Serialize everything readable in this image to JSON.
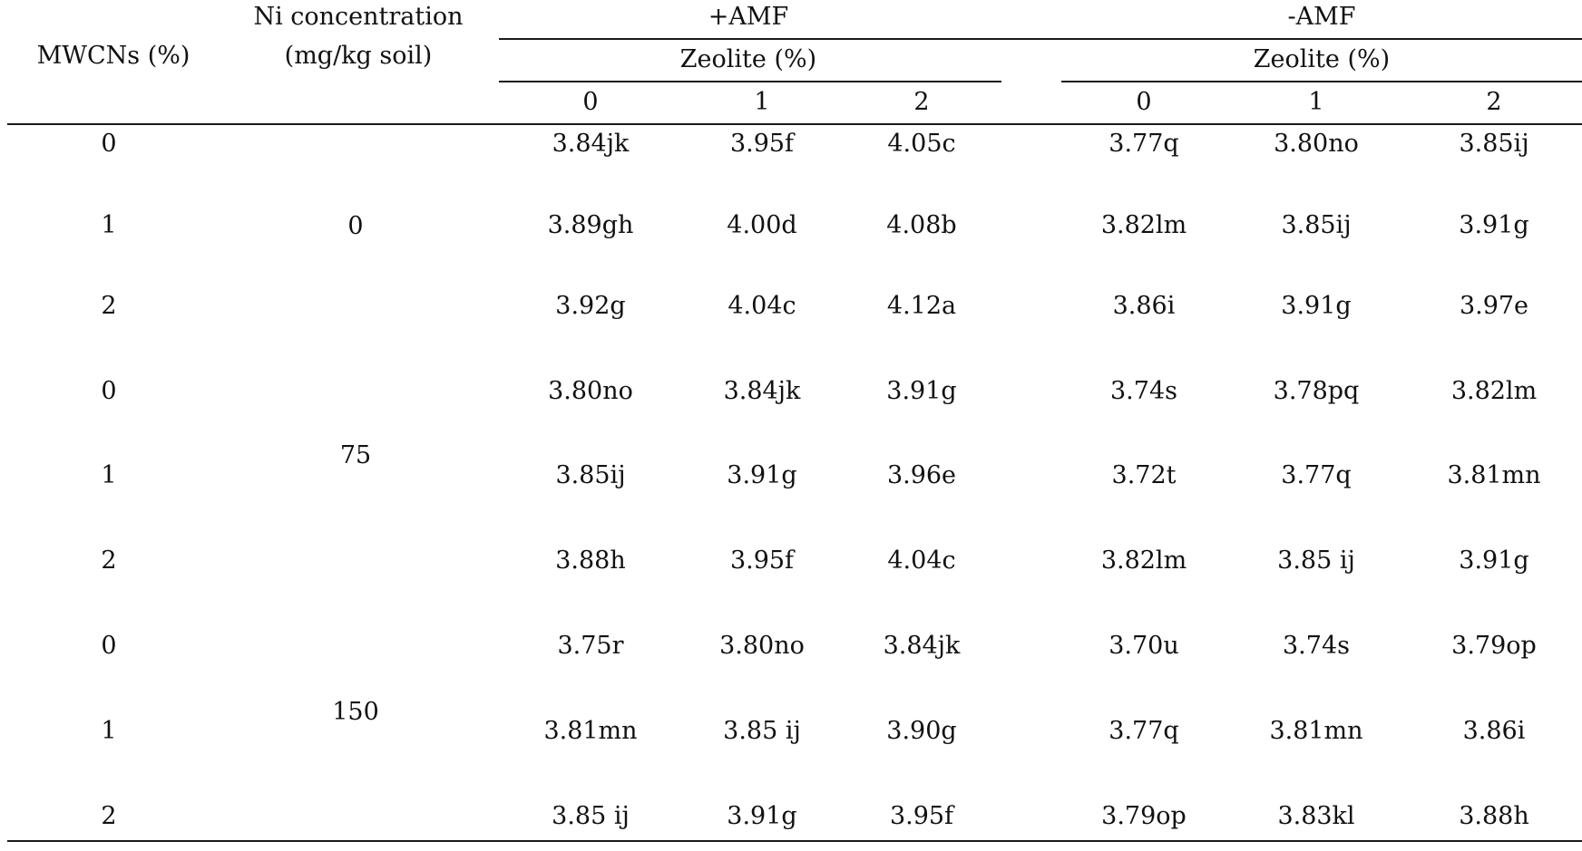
{
  "header": {
    "mwcns_label": "MWCNs (%)",
    "ni_label_line1": "Ni concentration",
    "ni_label_line2": "(mg/kg soil)",
    "plus_amf": "+AMF",
    "minus_amf": "-AMF",
    "zeolite_plus": "Zeolite (%)",
    "zeolite_minus": "Zeolite (%)",
    "zeolite_levels": [
      "0",
      "1",
      "2",
      "0",
      "1",
      "2"
    ]
  },
  "ni_groups": [
    "0",
    "75",
    "150"
  ],
  "rows": [
    {
      "mwcns": "0",
      "values": [
        "3.84jk",
        "3.95f",
        "4.05c",
        "3.77q",
        "3.80no",
        "3.85ij"
      ]
    },
    {
      "mwcns": "1",
      "values": [
        "3.89gh",
        "4.00d",
        "4.08b",
        "3.82lm",
        "3.85ij",
        "3.91g"
      ]
    },
    {
      "mwcns": "2",
      "values": [
        "3.92g",
        "4.04c",
        "4.12a",
        "3.86i",
        "3.91g",
        "3.97e"
      ]
    },
    {
      "mwcns": "0",
      "values": [
        "3.80no",
        "3.84jk",
        "3.91g",
        "3.74s",
        "3.78pq",
        "3.82lm"
      ]
    },
    {
      "mwcns": "1",
      "values": [
        "3.85ij",
        "3.91g",
        "3.96e",
        "3.72t",
        "3.77q",
        "3.81mn"
      ]
    },
    {
      "mwcns": "2",
      "values": [
        "3.88h",
        "3.95f",
        "4.04c",
        "3.82lm",
        "3.85 ij",
        "3.91g"
      ]
    },
    {
      "mwcns": "0",
      "values": [
        "3.75r",
        "3.80no",
        "3.84jk",
        "3.70u",
        "3.74s",
        "3.79op"
      ]
    },
    {
      "mwcns": "1",
      "values": [
        "3.81mn",
        "3.85 ij",
        "3.90g",
        "3.77q",
        "3.81mn",
        "3.86i"
      ]
    },
    {
      "mwcns": "2",
      "values": [
        "3.85 ij",
        "3.91g",
        "3.95f",
        "3.79op",
        "3.83kl",
        "3.88h"
      ]
    }
  ]
}
